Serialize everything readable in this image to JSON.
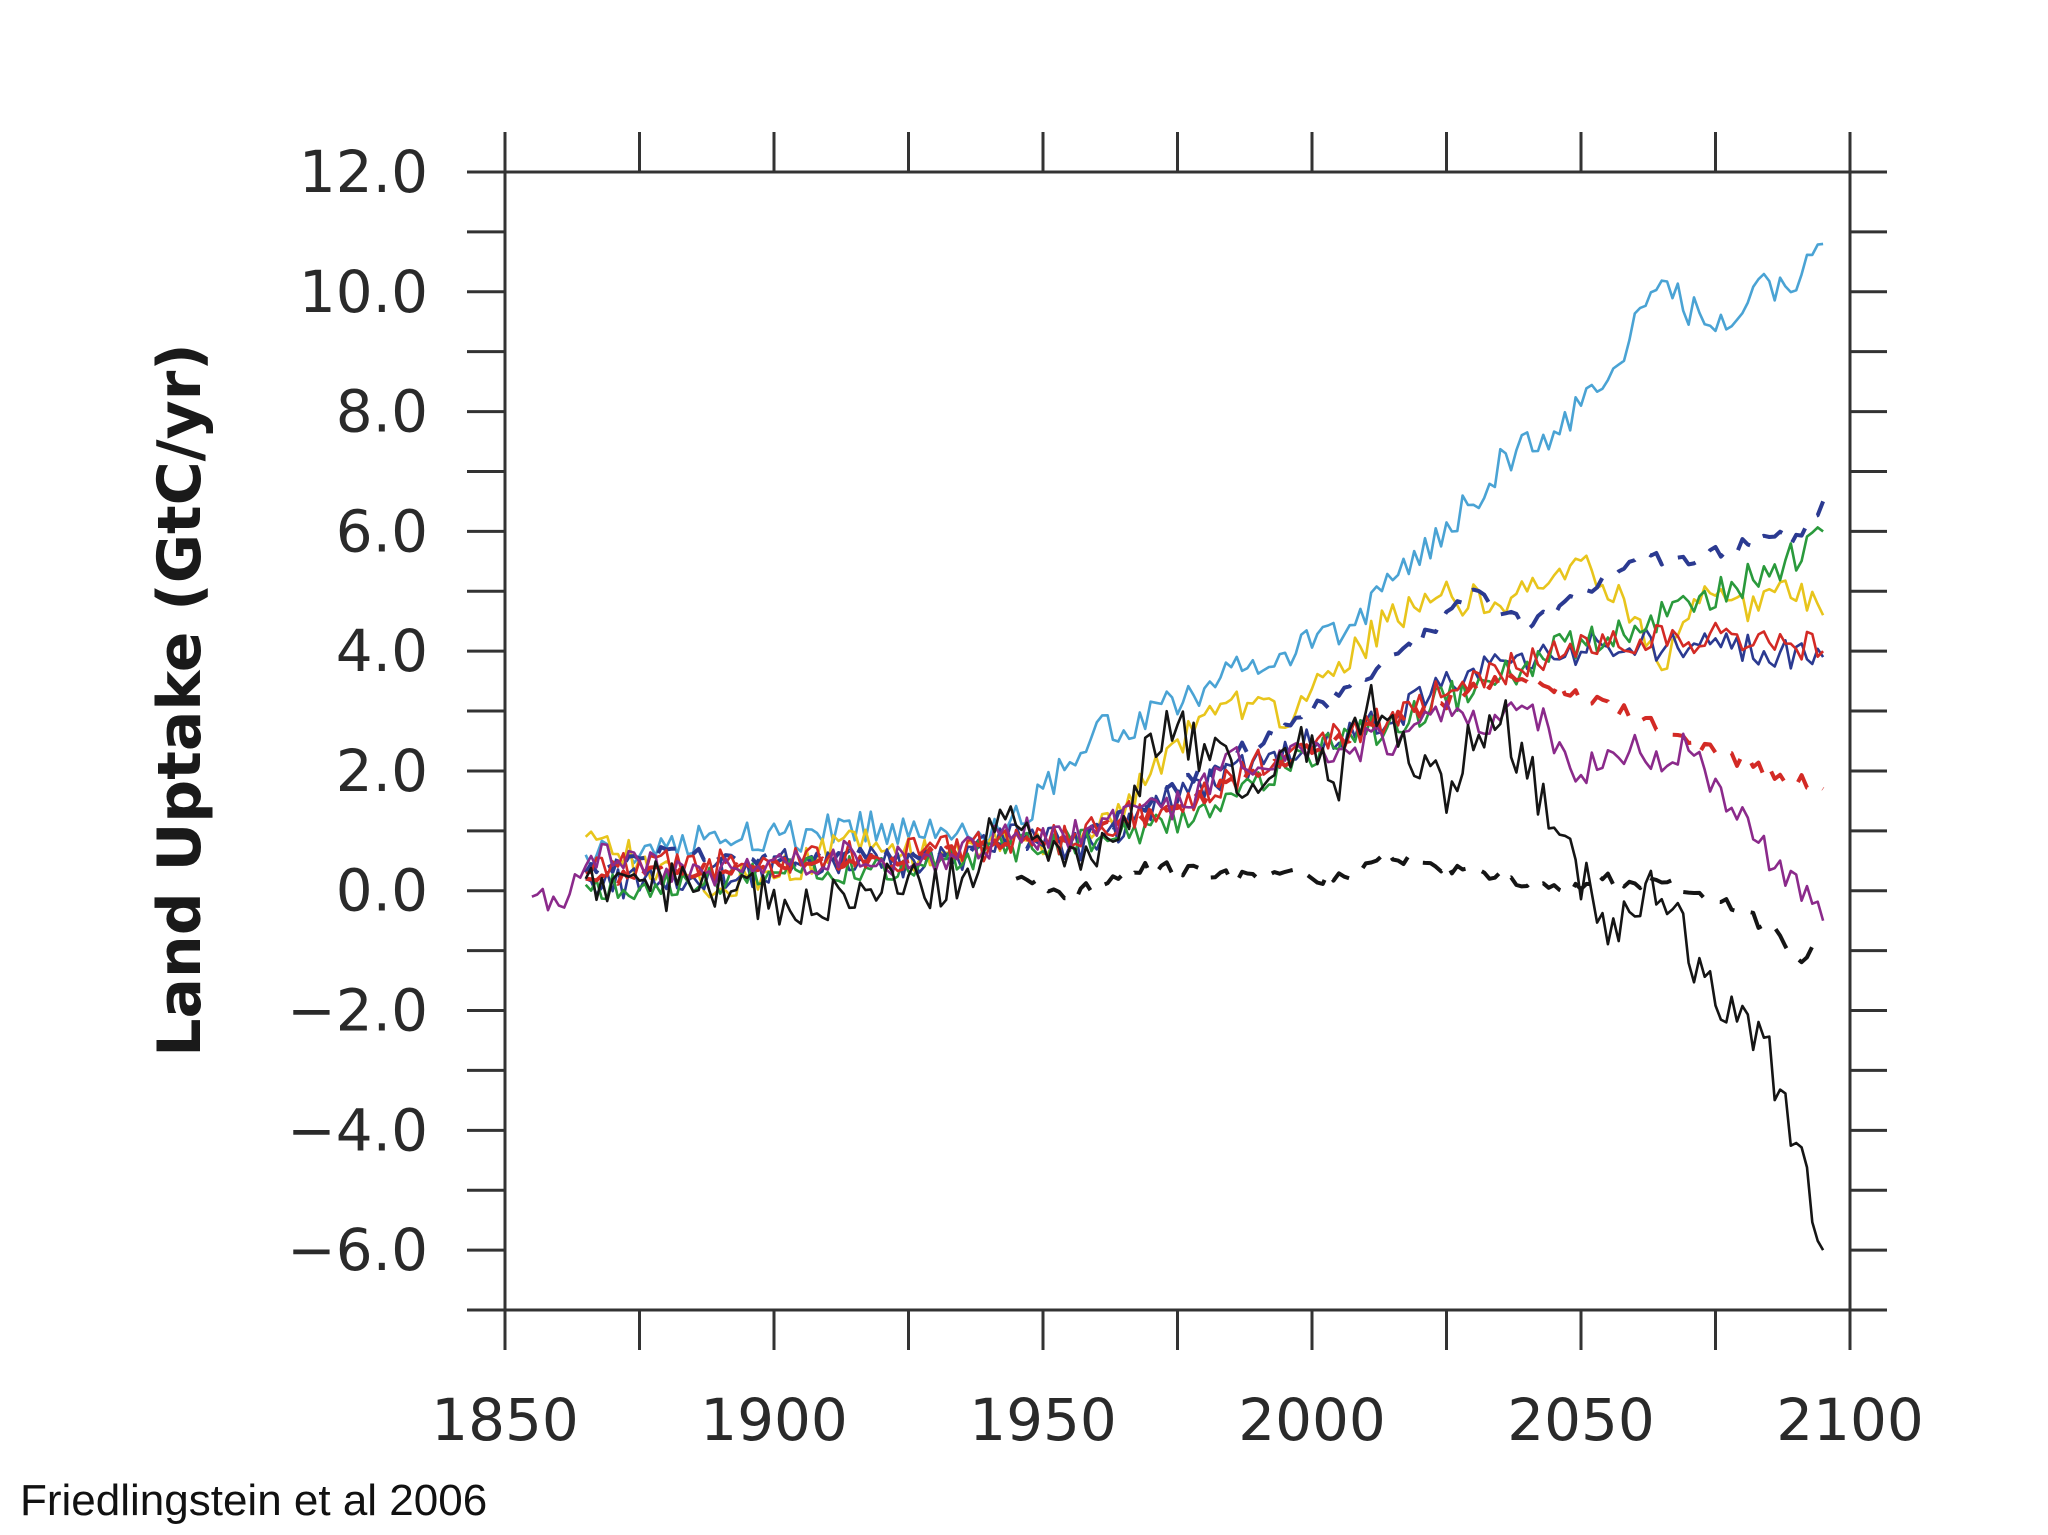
{
  "credit": "Friedlingstein et al 2006",
  "chart_data": {
    "type": "line",
    "title": "",
    "xlabel": "",
    "ylabel": "Land Uptake (GtC/yr)",
    "xlim": [
      1850,
      2100
    ],
    "ylim": [
      -7,
      12
    ],
    "x_ticks": [
      1850,
      1900,
      1950,
      2000,
      2050,
      2100
    ],
    "x_tick_labels": [
      "1850",
      "1900",
      "1950",
      "2000",
      "2050",
      "2100"
    ],
    "y_ticks": [
      12,
      10,
      8,
      6,
      4,
      2,
      0,
      -2,
      -4,
      -6
    ],
    "y_tick_labels": [
      "12.0",
      "10.0",
      "8.0",
      "6.0",
      "4.0",
      "2.0",
      "0.0",
      "−2.0",
      "−4.0",
      "−6.0"
    ],
    "series": [
      {
        "name": "light blue model",
        "color": "#4aa3d4",
        "dash": false,
        "x": [
          1865,
          1875,
          1885,
          1895,
          1905,
          1915,
          1925,
          1935,
          1945,
          1950,
          1955,
          1960,
          1965,
          1975,
          1985,
          1995,
          2005,
          2015,
          2025,
          2035,
          2045,
          2055,
          2060,
          2065,
          2070,
          2075,
          2080,
          2085,
          2090,
          2095
        ],
        "y": [
          0.6,
          0.5,
          0.8,
          0.9,
          0.9,
          1.1,
          1.0,
          0.9,
          1.2,
          1.6,
          2.2,
          2.8,
          2.7,
          3.2,
          3.6,
          4.0,
          4.3,
          5.1,
          6.0,
          7.1,
          7.7,
          8.4,
          9.5,
          10.2,
          9.7,
          9.5,
          9.8,
          10.1,
          10.2,
          10.8
        ]
      },
      {
        "name": "yellow model",
        "color": "#e8c51c",
        "dash": false,
        "x": [
          1865,
          1875,
          1885,
          1895,
          1905,
          1915,
          1925,
          1935,
          1945,
          1955,
          1965,
          1975,
          1985,
          1995,
          2005,
          2015,
          2025,
          2035,
          2045,
          2050,
          2055,
          2060,
          2065,
          2070,
          2075,
          2080,
          2085,
          2090,
          2095
        ],
        "y": [
          0.9,
          0.5,
          0.1,
          0.2,
          0.4,
          0.9,
          0.6,
          0.7,
          1.0,
          0.6,
          1.4,
          2.5,
          3.2,
          2.9,
          3.7,
          4.6,
          4.9,
          4.8,
          5.4,
          5.5,
          5.1,
          4.5,
          3.8,
          4.6,
          5.1,
          4.7,
          4.9,
          5.0,
          4.6
        ]
      },
      {
        "name": "dark blue model",
        "color": "#2b3a91",
        "dash": false,
        "x": [
          1865,
          1875,
          1885,
          1895,
          1905,
          1915,
          1925,
          1935,
          1945,
          1955,
          1965,
          1975,
          1985,
          1995,
          2005,
          2015,
          2025,
          2035,
          2045,
          2055,
          2065,
          2075,
          2085,
          2095
        ],
        "y": [
          0.2,
          0.1,
          0.3,
          0.3,
          0.5,
          0.6,
          0.4,
          0.6,
          1.0,
          0.7,
          1.1,
          1.6,
          2.0,
          2.3,
          2.6,
          2.9,
          3.4,
          3.8,
          4.0,
          4.1,
          4.1,
          4.2,
          4.0,
          3.9
        ]
      },
      {
        "name": "dark blue dashed model",
        "color": "#2b3a91",
        "dash": true,
        "x": [
          1865,
          1880,
          1900,
          1920,
          1940,
          1960,
          1980,
          2000,
          2010,
          2020,
          2030,
          2040,
          2050,
          2060,
          2070,
          2080,
          2090,
          2095
        ],
        "y": [
          0.3,
          0.7,
          0.5,
          0.6,
          0.7,
          1.0,
          2.0,
          3.0,
          3.6,
          4.2,
          5.0,
          4.4,
          4.9,
          5.6,
          5.5,
          5.8,
          5.9,
          6.5
        ]
      },
      {
        "name": "green model",
        "color": "#2a9a3c",
        "dash": false,
        "x": [
          1865,
          1875,
          1885,
          1895,
          1905,
          1915,
          1925,
          1935,
          1945,
          1955,
          1965,
          1975,
          1985,
          1995,
          2005,
          2015,
          2025,
          2035,
          2045,
          2055,
          2065,
          2075,
          2085,
          2090,
          2095
        ],
        "y": [
          0.1,
          0.0,
          0.1,
          0.2,
          0.3,
          0.4,
          0.4,
          0.5,
          0.7,
          0.8,
          1.0,
          1.2,
          1.6,
          2.1,
          2.5,
          2.8,
          3.2,
          3.6,
          4.0,
          4.2,
          4.6,
          5.0,
          5.3,
          5.6,
          6.0
        ]
      },
      {
        "name": "red model",
        "color": "#d32a25",
        "dash": false,
        "x": [
          1865,
          1875,
          1885,
          1895,
          1905,
          1915,
          1925,
          1935,
          1945,
          1955,
          1965,
          1975,
          1985,
          1995,
          2005,
          2015,
          2025,
          2035,
          2045,
          2055,
          2065,
          2075,
          2085,
          2095
        ],
        "y": [
          0.3,
          0.4,
          0.4,
          0.5,
          0.5,
          0.6,
          0.6,
          0.7,
          0.8,
          0.9,
          1.2,
          1.5,
          1.9,
          2.3,
          2.6,
          2.9,
          3.3,
          3.7,
          3.9,
          4.1,
          4.2,
          4.2,
          4.2,
          4.0
        ]
      },
      {
        "name": "red dashed model",
        "color": "#d32a25",
        "dash": true,
        "x": [
          1865,
          1900,
          1930,
          1960,
          1980,
          2000,
          2020,
          2035,
          2045,
          2055,
          2065,
          2075,
          2085,
          2095
        ],
        "y": [
          0.2,
          0.4,
          0.6,
          1.0,
          1.6,
          2.4,
          3.0,
          3.5,
          3.4,
          3.1,
          2.7,
          2.3,
          2.0,
          1.7
        ]
      },
      {
        "name": "purple model",
        "color": "#8b2a8b",
        "dash": false,
        "x": [
          1855,
          1860,
          1865,
          1875,
          1885,
          1895,
          1905,
          1915,
          1925,
          1935,
          1945,
          1955,
          1965,
          1975,
          1985,
          1995,
          2005,
          2015,
          2025,
          2035,
          2040,
          2045,
          2050,
          2055,
          2060,
          2065,
          2070,
          2075,
          2080,
          2085,
          2090,
          2095
        ],
        "y": [
          -0.1,
          -0.4,
          0.6,
          0.5,
          0.2,
          0.3,
          0.4,
          0.6,
          0.5,
          0.6,
          1.0,
          0.9,
          1.2,
          1.4,
          2.1,
          2.3,
          2.4,
          2.5,
          2.9,
          2.8,
          3.2,
          2.5,
          2.0,
          2.1,
          2.4,
          2.1,
          2.5,
          1.7,
          1.2,
          0.5,
          0.1,
          -0.5
        ]
      },
      {
        "name": "black model",
        "color": "#151515",
        "dash": false,
        "x": [
          1865,
          1875,
          1885,
          1895,
          1905,
          1915,
          1925,
          1935,
          1945,
          1955,
          1965,
          1970,
          1975,
          1985,
          1995,
          2000,
          2005,
          2010,
          2015,
          2020,
          2025,
          2030,
          2035,
          2040,
          2045,
          2050,
          2055,
          2060,
          2065,
          2070,
          2075,
          2080,
          2085,
          2090,
          2095
        ],
        "y": [
          0.2,
          0.0,
          0.2,
          -0.1,
          -0.2,
          0.0,
          0.2,
          0.1,
          1.5,
          0.5,
          1.2,
          2.5,
          2.8,
          1.9,
          2.0,
          2.5,
          1.8,
          3.3,
          2.6,
          2.2,
          1.6,
          2.5,
          3.0,
          2.0,
          1.0,
          0.3,
          -0.8,
          -0.2,
          0.2,
          -0.9,
          -1.8,
          -2.0,
          -2.8,
          -4.2,
          -6.0
        ]
      },
      {
        "name": "black dashed model",
        "color": "#151515",
        "dash": true,
        "x": [
          1945,
          1955,
          1965,
          1975,
          1985,
          1995,
          2005,
          2015,
          2025,
          2035,
          2045,
          2055,
          2065,
          2075,
          2085,
          2090,
          2095
        ],
        "y": [
          0.2,
          -0.1,
          0.3,
          0.4,
          0.2,
          0.3,
          0.2,
          0.6,
          0.4,
          0.3,
          0.0,
          0.2,
          0.1,
          -0.1,
          -0.6,
          -1.1,
          -1.0
        ]
      }
    ]
  }
}
